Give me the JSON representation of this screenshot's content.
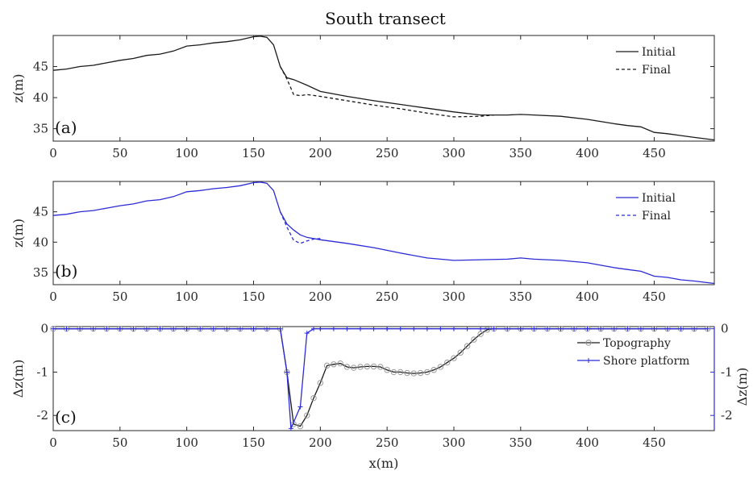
{
  "title": "South transect",
  "colors": {
    "black": "#1a1a1a",
    "blue": "#2b2bd6",
    "marker": "#9a9a9a"
  },
  "chart_data": [
    {
      "type": "line",
      "panel": "(a)",
      "ylabel": "z(m)",
      "xlim": [
        0,
        495
      ],
      "ylim": [
        33,
        50
      ],
      "xticks": [
        0,
        50,
        100,
        150,
        200,
        250,
        300,
        350,
        400,
        450
      ],
      "yticks": [
        35,
        40,
        45
      ],
      "legend": "top-right",
      "series": [
        {
          "name": "Initial",
          "style": "solid",
          "x": [
            0,
            10,
            20,
            30,
            40,
            50,
            60,
            70,
            80,
            90,
            100,
            110,
            120,
            130,
            140,
            150,
            155,
            160,
            165,
            170,
            175,
            180,
            190,
            200,
            220,
            240,
            260,
            280,
            300,
            320,
            340,
            350,
            360,
            380,
            400,
            420,
            430,
            440,
            450,
            460,
            470,
            480,
            495
          ],
          "y": [
            44.4,
            44.6,
            45.0,
            45.2,
            45.6,
            46.0,
            46.3,
            46.8,
            47.0,
            47.5,
            48.3,
            48.5,
            48.8,
            49.0,
            49.3,
            49.8,
            49.9,
            49.7,
            48.5,
            45.0,
            43.2,
            42.9,
            42.0,
            41.0,
            40.2,
            39.5,
            38.9,
            38.3,
            37.7,
            37.2,
            37.2,
            37.3,
            37.2,
            37.0,
            36.5,
            35.8,
            35.5,
            35.3,
            34.4,
            34.2,
            33.9,
            33.6,
            33.2
          ]
        },
        {
          "name": "Final",
          "style": "dashed",
          "x": [
            170,
            175,
            180,
            185,
            190,
            200,
            220,
            240,
            260,
            280,
            300,
            320,
            330
          ],
          "y": [
            45.0,
            43.0,
            40.5,
            40.3,
            40.5,
            40.2,
            39.5,
            38.8,
            38.2,
            37.5,
            36.9,
            37.0,
            37.2
          ]
        }
      ]
    },
    {
      "type": "line",
      "panel": "(b)",
      "ylabel": "z(m)",
      "xlim": [
        0,
        495
      ],
      "ylim": [
        33,
        50
      ],
      "xticks": [
        0,
        50,
        100,
        150,
        200,
        250,
        300,
        350,
        400,
        450
      ],
      "yticks": [
        35,
        40,
        45
      ],
      "legend": "top-right",
      "series": [
        {
          "name": "Initial",
          "style": "solid",
          "x": [
            0,
            10,
            20,
            30,
            40,
            50,
            60,
            70,
            80,
            90,
            100,
            110,
            120,
            130,
            140,
            150,
            155,
            160,
            165,
            170,
            175,
            180,
            185,
            190,
            200,
            220,
            240,
            260,
            280,
            300,
            320,
            340,
            350,
            360,
            380,
            400,
            420,
            430,
            440,
            450,
            460,
            470,
            480,
            495
          ],
          "y": [
            44.4,
            44.6,
            45.0,
            45.2,
            45.6,
            46.0,
            46.3,
            46.8,
            47.0,
            47.5,
            48.3,
            48.5,
            48.8,
            49.0,
            49.3,
            49.8,
            49.9,
            49.7,
            48.5,
            45.0,
            43.0,
            42.0,
            41.2,
            40.8,
            40.4,
            39.8,
            39.1,
            38.2,
            37.4,
            37.0,
            37.1,
            37.2,
            37.4,
            37.2,
            37.0,
            36.6,
            35.8,
            35.5,
            35.2,
            34.4,
            34.2,
            33.8,
            33.6,
            33.2
          ]
        },
        {
          "name": "Final",
          "style": "dashed",
          "x": [
            170,
            175,
            180,
            185,
            190,
            195,
            200
          ],
          "y": [
            45.0,
            42.5,
            40.3,
            39.8,
            40.2,
            40.5,
            40.6
          ]
        }
      ]
    },
    {
      "type": "line",
      "panel": "(c)",
      "ylabel": "Δz(m)",
      "ylabel_right": "Δz(m)",
      "xlabel": "x(m)",
      "xlim": [
        0,
        495
      ],
      "ylim": [
        -2.35,
        0.05
      ],
      "xticks": [
        0,
        50,
        100,
        150,
        200,
        250,
        300,
        350,
        400,
        450
      ],
      "yticks": [
        -2,
        -1,
        0
      ],
      "legend": "top-right",
      "series": [
        {
          "name": "Topography",
          "style": "solid-marker-circle",
          "x": [
            0,
            10,
            20,
            30,
            40,
            50,
            60,
            70,
            80,
            90,
            100,
            110,
            120,
            130,
            140,
            150,
            160,
            170,
            175,
            180,
            185,
            190,
            195,
            200,
            205,
            210,
            215,
            220,
            225,
            230,
            235,
            240,
            245,
            250,
            255,
            260,
            265,
            270,
            275,
            280,
            285,
            290,
            295,
            300,
            305,
            310,
            315,
            320,
            325,
            330,
            340,
            350,
            360,
            370,
            380,
            390,
            400,
            410,
            420,
            430,
            440,
            450,
            460,
            470,
            480,
            490
          ],
          "y": [
            0,
            0,
            0,
            0,
            0,
            0,
            0,
            0,
            0,
            0,
            0,
            0,
            0,
            0,
            0,
            0,
            0,
            0,
            -1.0,
            -2.2,
            -2.25,
            -2.0,
            -1.6,
            -1.25,
            -0.85,
            -0.82,
            -0.8,
            -0.88,
            -0.9,
            -0.88,
            -0.87,
            -0.87,
            -0.88,
            -0.95,
            -1.0,
            -1.0,
            -1.02,
            -1.03,
            -1.02,
            -1.0,
            -0.95,
            -0.88,
            -0.78,
            -0.68,
            -0.55,
            -0.4,
            -0.25,
            -0.12,
            -0.02,
            0,
            0,
            0,
            0,
            0,
            0,
            0,
            0,
            0,
            0,
            0,
            0,
            0,
            0,
            0,
            0,
            0
          ]
        },
        {
          "name": "Shore platform",
          "style": "solid-marker-plus",
          "x": [
            0,
            10,
            20,
            30,
            40,
            50,
            60,
            70,
            80,
            90,
            100,
            110,
            120,
            130,
            140,
            150,
            160,
            170,
            175,
            178,
            185,
            190,
            195,
            200,
            210,
            220,
            230,
            240,
            250,
            260,
            270,
            280,
            290,
            300,
            310,
            320,
            330,
            340,
            350,
            360,
            370,
            380,
            390,
            400,
            410,
            420,
            430,
            440,
            450,
            460,
            470,
            480,
            490
          ],
          "y": [
            0,
            0,
            0,
            0,
            0,
            0,
            0,
            0,
            0,
            0,
            0,
            0,
            0,
            0,
            0,
            0,
            0,
            0,
            -1.0,
            -2.3,
            -1.8,
            -0.1,
            0,
            0,
            0,
            0,
            0,
            0,
            0,
            0,
            0,
            0,
            0,
            0,
            0,
            0,
            0,
            0,
            0,
            0,
            0,
            0,
            0,
            0,
            0,
            0,
            0,
            0,
            0,
            0,
            0,
            0,
            0
          ]
        }
      ],
      "y_right": {
        "ylim": [
          -2.35,
          0.05
        ],
        "yticks": [
          -2,
          -1,
          0
        ],
        "color": "#2b2bd6"
      }
    }
  ]
}
